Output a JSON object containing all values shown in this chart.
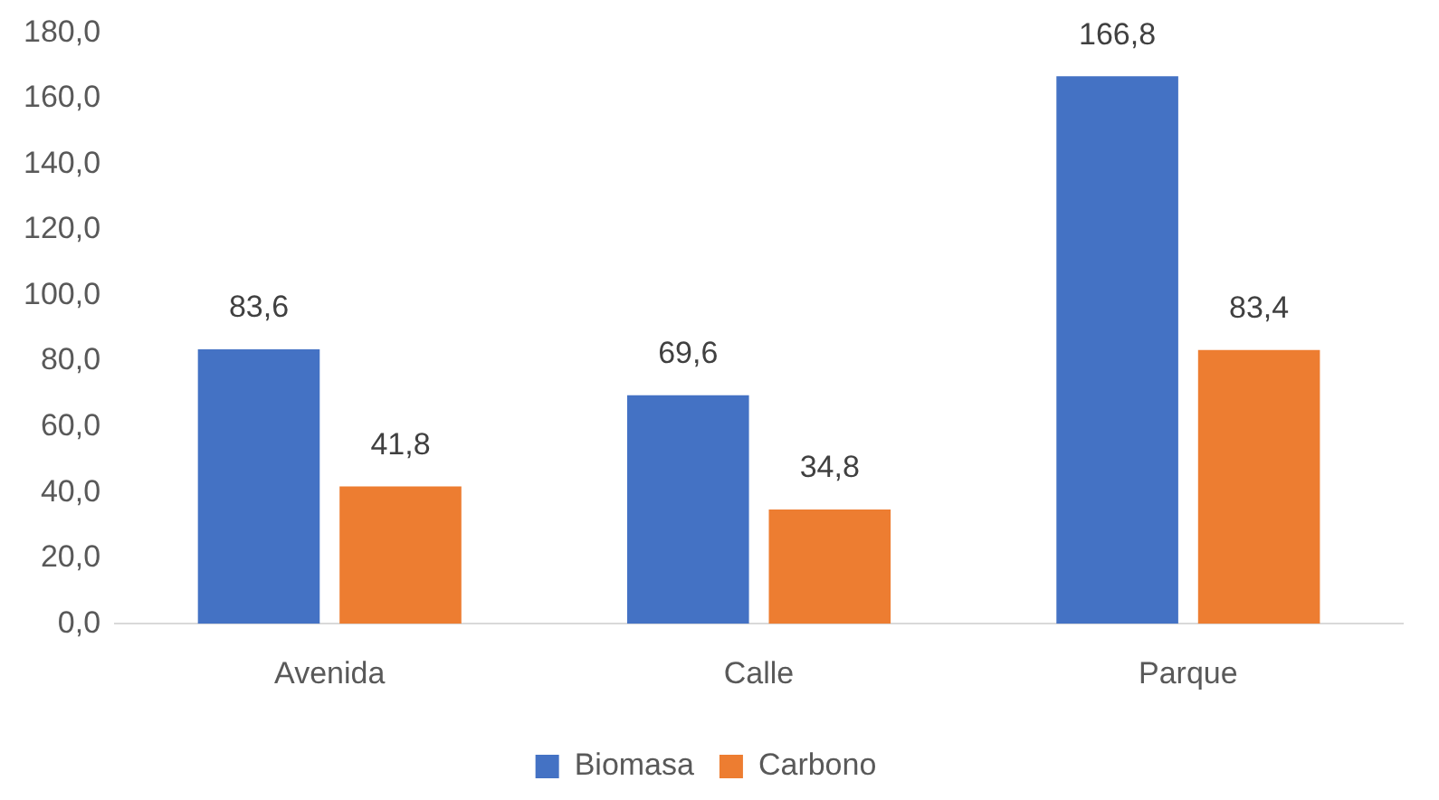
{
  "chart_data": {
    "type": "bar",
    "categories": [
      "Avenida",
      "Calle",
      "Parque"
    ],
    "series": [
      {
        "name": "Biomasa",
        "color": "#4472c4",
        "values": [
          83.6,
          69.6,
          166.8
        ],
        "value_labels": [
          "83,6",
          "69,6",
          "166,8"
        ]
      },
      {
        "name": "Carbono",
        "color": "#ed7d31",
        "values": [
          41.8,
          34.8,
          83.4
        ],
        "value_labels": [
          "41,8",
          "34,8",
          "83,4"
        ]
      }
    ],
    "ylim": [
      0,
      180
    ],
    "yticks": [
      {
        "value": 0,
        "label": "0,0"
      },
      {
        "value": 20,
        "label": "20,0"
      },
      {
        "value": 40,
        "label": "40,0"
      },
      {
        "value": 60,
        "label": "60,0"
      },
      {
        "value": 80,
        "label": "80,0"
      },
      {
        "value": 100,
        "label": "100,0"
      },
      {
        "value": 120,
        "label": "120,0"
      },
      {
        "value": 140,
        "label": "140,0"
      },
      {
        "value": 160,
        "label": "160,0"
      },
      {
        "value": 180,
        "label": "180,0"
      }
    ],
    "grid": false,
    "legend": "bottom"
  }
}
